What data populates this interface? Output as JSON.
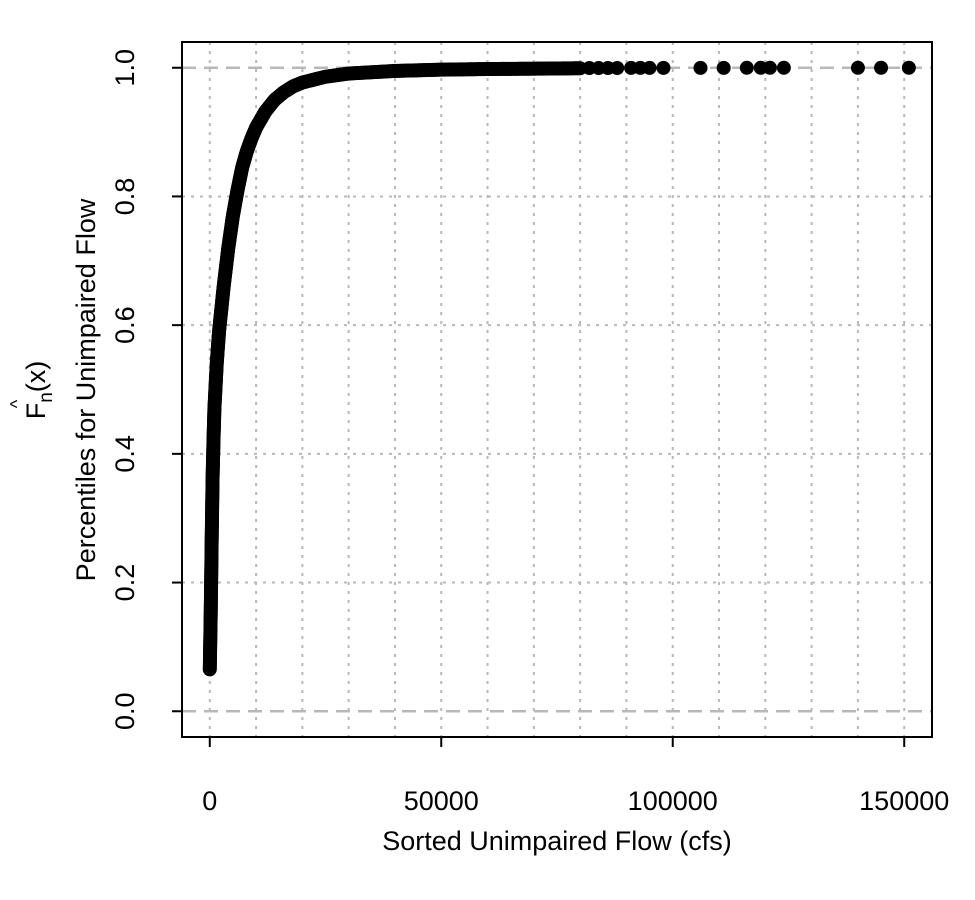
{
  "chart_data": {
    "type": "scatter",
    "title": "",
    "xlabel": "Sorted Unimpaired Flow (cfs)",
    "ylabel": "Percentiles for Unimpaired Flow",
    "fn_label": {
      "base": "F",
      "subscript": "n",
      "suffix": "(x)"
    },
    "xlim": [
      -6000,
      156000
    ],
    "ylim": [
      -0.04,
      1.04
    ],
    "x_ticks": [
      0,
      50000,
      100000,
      150000
    ],
    "x_tick_labels": [
      "0",
      "50000",
      "100000",
      "150000"
    ],
    "y_ticks": [
      0.0,
      0.2,
      0.4,
      0.6,
      0.8,
      1.0
    ],
    "y_tick_labels": [
      "0.0",
      "0.2",
      "0.4",
      "0.6",
      "0.8",
      "1.0"
    ],
    "x_grid": [
      0,
      10000,
      20000,
      30000,
      40000,
      50000,
      60000,
      70000,
      80000,
      90000,
      100000,
      110000,
      120000,
      130000,
      140000,
      150000
    ],
    "y_grid": [
      0.2,
      0.4,
      0.6,
      0.8
    ],
    "reference_lines_y": [
      0,
      1
    ],
    "grid": true,
    "point_color": "#000000",
    "grid_color": "#b8b8b8",
    "curve": [
      [
        0,
        0.065
      ],
      [
        200,
        0.15
      ],
      [
        400,
        0.26
      ],
      [
        600,
        0.36
      ],
      [
        800,
        0.42
      ],
      [
        1000,
        0.47
      ],
      [
        1500,
        0.54
      ],
      [
        2000,
        0.59
      ],
      [
        3000,
        0.66
      ],
      [
        4000,
        0.72
      ],
      [
        5000,
        0.77
      ],
      [
        6000,
        0.81
      ],
      [
        7000,
        0.845
      ],
      [
        8000,
        0.87
      ],
      [
        9000,
        0.89
      ],
      [
        10000,
        0.907
      ],
      [
        12000,
        0.932
      ],
      [
        14000,
        0.95
      ],
      [
        16000,
        0.962
      ],
      [
        18000,
        0.971
      ],
      [
        20000,
        0.977
      ],
      [
        25000,
        0.986
      ],
      [
        30000,
        0.991
      ],
      [
        40000,
        0.995
      ],
      [
        50000,
        0.997
      ],
      [
        60000,
        0.998
      ],
      [
        70000,
        0.9985
      ],
      [
        80000,
        0.9992
      ]
    ],
    "tail_points": [
      [
        82000,
        0.9995
      ],
      [
        84000,
        0.9995
      ],
      [
        86000,
        0.9996
      ],
      [
        88000,
        0.9996
      ],
      [
        91000,
        0.9997
      ],
      [
        93000,
        0.9997
      ],
      [
        95000,
        0.9997
      ],
      [
        98000,
        0.9998
      ],
      [
        106000,
        0.9998
      ],
      [
        111000,
        0.9998
      ],
      [
        116000,
        0.9999
      ],
      [
        119000,
        0.9999
      ],
      [
        121000,
        0.9999
      ],
      [
        124000,
        0.9999
      ],
      [
        140000,
        0.99995
      ],
      [
        145000,
        0.99997
      ],
      [
        151000,
        1.0
      ]
    ]
  }
}
